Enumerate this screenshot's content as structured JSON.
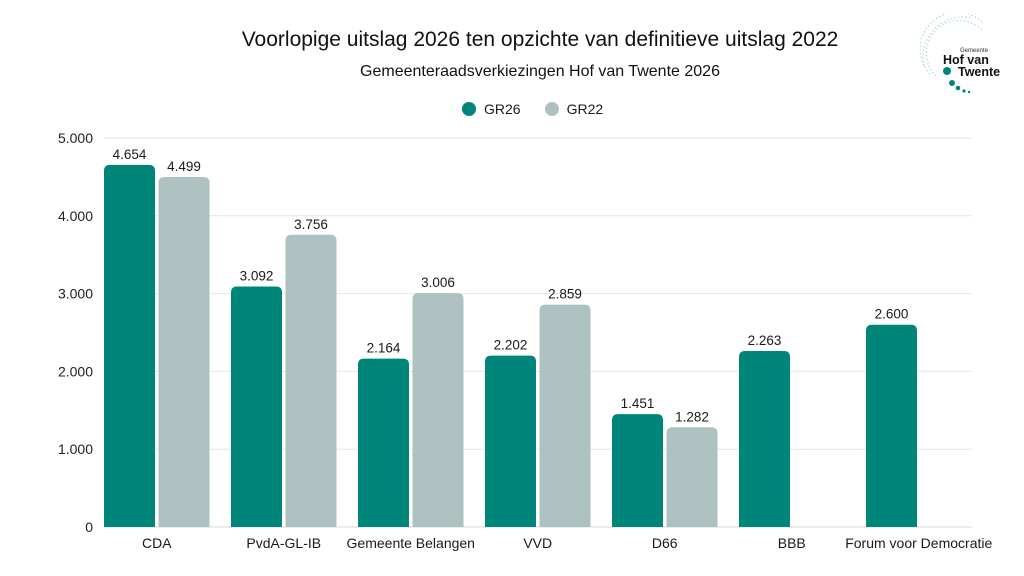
{
  "chart_data": {
    "type": "bar",
    "title": "Voorlopige uitslag 2026 ten opzichte van definitieve uitslag 2022",
    "subtitle": "Gemeenteraadsverkiezingen Hof van Twente 2026",
    "xlabel": "",
    "ylabel": "",
    "ylim": [
      0,
      5000
    ],
    "yticks": [
      0,
      1000,
      2000,
      3000,
      4000,
      5000
    ],
    "ytick_labels": [
      "0",
      "1.000",
      "2.000",
      "3.000",
      "4.000",
      "5.000"
    ],
    "grid": true,
    "legend_position": "top-center",
    "categories": [
      "CDA",
      "PvdA-GL-IB",
      "Gemeente Belangen",
      "VVD",
      "D66",
      "BBB",
      "Forum voor Democratie"
    ],
    "series": [
      {
        "name": "GR26",
        "color": "#00857a",
        "values": [
          4654,
          3092,
          2164,
          2202,
          1451,
          2263,
          2600
        ],
        "labels": [
          "4.654",
          "3.092",
          "2.164",
          "2.202",
          "1.451",
          "2.263",
          "2.600"
        ]
      },
      {
        "name": "GR22",
        "color": "#adc2c0",
        "values": [
          4499,
          3756,
          3006,
          2859,
          1282,
          null,
          null
        ],
        "labels": [
          "4.499",
          "3.756",
          "3.006",
          "2.859",
          "1.282",
          null,
          null
        ]
      }
    ]
  },
  "logo": {
    "small_text": "Gemeente",
    "line1": "Hof van",
    "line2": "Twente"
  }
}
